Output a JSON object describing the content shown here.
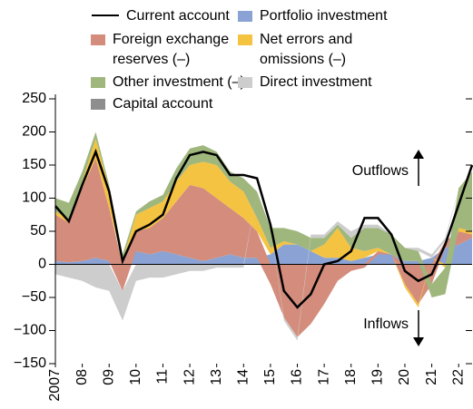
{
  "chart_data": {
    "type": "stacked-area-line",
    "x": [
      2007,
      2007.5,
      2008,
      2008.5,
      2009,
      2009.5,
      2010,
      2010.5,
      2011,
      2011.5,
      2012,
      2012.5,
      2013,
      2013.5,
      2014,
      2014.5,
      2015,
      2015.5,
      2016,
      2016.5,
      2017,
      2017.5,
      2018,
      2018.5,
      2019,
      2019.5,
      2020,
      2020.5,
      2021,
      2021.5,
      2022,
      2022.5
    ],
    "xlim": [
      2007,
      2022.5
    ],
    "xticks": [
      2007,
      {
        "value": 2008,
        "label": "08"
      },
      {
        "value": 2009,
        "label": "09"
      },
      {
        "value": 2010,
        "label": "10"
      },
      {
        "value": 2011,
        "label": "11"
      },
      {
        "value": 2012,
        "label": "12"
      },
      {
        "value": 2013,
        "label": "13"
      },
      {
        "value": 2014,
        "label": "14"
      },
      {
        "value": 2015,
        "label": "15"
      },
      {
        "value": 2016,
        "label": "16"
      },
      {
        "value": 2017,
        "label": "17"
      },
      {
        "value": 2018,
        "label": "18"
      },
      {
        "value": 2019,
        "label": "19"
      },
      {
        "value": 2020,
        "label": "20"
      },
      {
        "value": 2021,
        "label": "21"
      },
      {
        "value": 2022,
        "label": "22"
      }
    ],
    "ylim": [
      -150,
      250
    ],
    "yticks": [
      {
        "value": 250,
        "label": "250"
      },
      {
        "value": 200,
        "label": "200"
      },
      {
        "value": 150,
        "label": "150"
      },
      {
        "value": 100,
        "label": "100"
      },
      {
        "value": 50,
        "label": "50"
      },
      0,
      {
        "value": -50,
        "label": "−50"
      },
      {
        "value": -100,
        "label": "−100"
      },
      {
        "value": -150,
        "label": "−150"
      }
    ],
    "areas": [
      {
        "name": "Portfolio investment",
        "color": "#8aa3d4",
        "values": [
          5,
          3,
          5,
          10,
          5,
          5,
          20,
          15,
          20,
          15,
          10,
          5,
          10,
          15,
          10,
          10,
          15,
          30,
          30,
          20,
          10,
          10,
          5,
          10,
          15,
          15,
          5,
          5,
          10,
          25,
          30,
          40
        ]
      },
      {
        "name": "Foreign exchange reserves (–)",
        "color": "#d48d7c",
        "values": [
          70,
          60,
          110,
          150,
          80,
          -40,
          30,
          40,
          50,
          80,
          110,
          110,
          90,
          70,
          60,
          40,
          -30,
          -80,
          -110,
          -90,
          -60,
          -25,
          -10,
          -5,
          5,
          0,
          -30,
          -60,
          -30,
          10,
          20,
          5
        ]
      },
      {
        "name": "Net errors and omissions (–)",
        "color": "#f5c342",
        "values": [
          5,
          5,
          10,
          30,
          30,
          0,
          25,
          30,
          25,
          30,
          30,
          40,
          50,
          40,
          40,
          20,
          10,
          5,
          0,
          0,
          20,
          45,
          20,
          10,
          5,
          0,
          -5,
          -5,
          0,
          -5,
          5,
          5
        ]
      },
      {
        "name": "Other investment (–)",
        "color": "#9fb67d",
        "values": [
          20,
          25,
          15,
          10,
          5,
          10,
          5,
          10,
          10,
          20,
          25,
          25,
          20,
          15,
          20,
          40,
          30,
          20,
          20,
          20,
          10,
          5,
          15,
          35,
          30,
          30,
          20,
          15,
          -20,
          -40,
          60,
          90
        ]
      },
      {
        "name": "Direct investment",
        "color": "#cdcdcd",
        "values": [
          -15,
          -20,
          -25,
          -35,
          -40,
          -45,
          -25,
          -20,
          -20,
          -15,
          -10,
          -10,
          -5,
          -5,
          -5,
          0,
          0,
          -5,
          -5,
          5,
          5,
          5,
          10,
          5,
          5,
          0,
          0,
          5,
          5,
          5,
          0,
          0
        ]
      },
      {
        "name": "Capital account",
        "color": "#8e8e8e",
        "values": [
          0,
          0,
          0,
          0,
          0,
          0,
          0,
          0,
          0,
          0,
          0,
          0,
          0,
          0,
          0,
          0,
          0,
          0,
          0,
          0,
          0,
          0,
          0,
          0,
          0,
          0,
          0,
          0,
          0,
          0,
          0,
          0
        ]
      }
    ],
    "line": {
      "name": "Current account",
      "color": "#000000",
      "values": [
        88,
        65,
        120,
        170,
        110,
        5,
        50,
        60,
        75,
        130,
        165,
        170,
        165,
        135,
        135,
        130,
        60,
        -40,
        -65,
        -45,
        0,
        5,
        20,
        70,
        70,
        45,
        -10,
        -25,
        -15,
        30,
        90,
        150
      ]
    },
    "annotations": [
      "Outflows",
      "Inflows"
    ]
  }
}
